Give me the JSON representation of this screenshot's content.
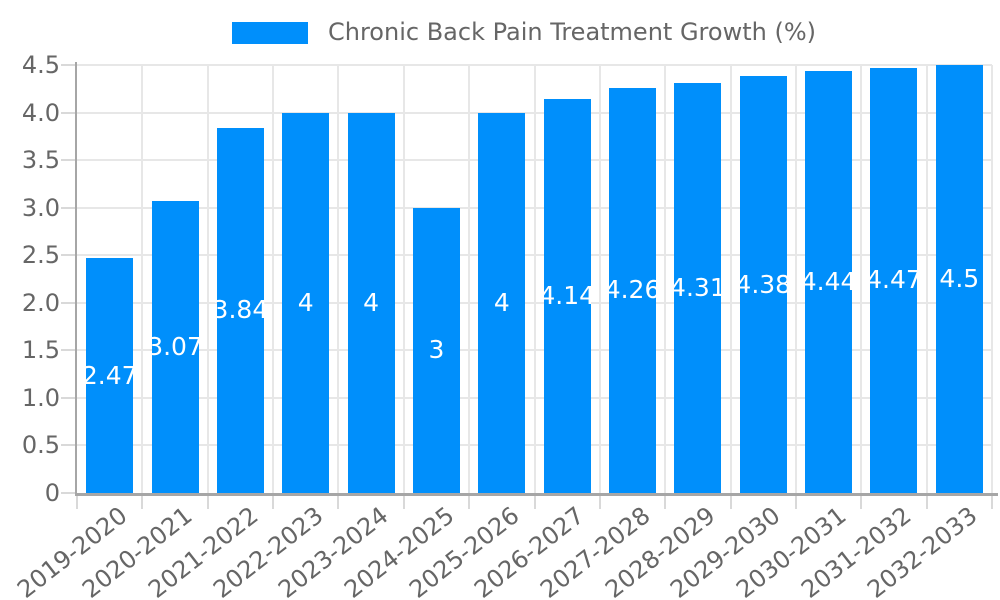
{
  "legend": {
    "label": "Chronic Back Pain Treatment Growth (%)",
    "marker_color": "#008FFB",
    "position": "top"
  },
  "chart_data": {
    "type": "bar",
    "title": "Chronic Back Pain Treatment Growth (%)",
    "categories": [
      "2019-2020",
      "2020-2021",
      "2021-2022",
      "2022-2023",
      "2023-2024",
      "2024-2025",
      "2025-2026",
      "2026-2027",
      "2027-2028",
      "2028-2029",
      "2029-2030",
      "2030-2031",
      "2031-2032",
      "2032-2033"
    ],
    "values": [
      2.47,
      3.07,
      3.84,
      4,
      4,
      3,
      4,
      4.14,
      4.26,
      4.31,
      4.38,
      4.44,
      4.47,
      4.5
    ],
    "bar_labels": [
      "2.47",
      "3.07",
      "3.84",
      "4",
      "4",
      "3",
      "4",
      "4.14",
      "4.26",
      "4.31",
      "4.38",
      "4.44",
      "4.47",
      "4.5"
    ],
    "xlabel": "",
    "ylabel": "",
    "ylim": [
      0,
      4.5
    ],
    "y_ticks": [
      "4.5",
      "4.0",
      "3.5",
      "3.0",
      "2.5",
      "2.0",
      "1.5",
      "1.0",
      "0.5",
      "0"
    ],
    "grid": true,
    "legend_position": "top",
    "colors": {
      "bar": "#008FFB",
      "bar_value_text": "#FFFFFF",
      "grid": "#E7E7E7",
      "tick": "#D9D9D9",
      "axis_line": "#A6A6A6",
      "axis_text": "#666666"
    }
  }
}
